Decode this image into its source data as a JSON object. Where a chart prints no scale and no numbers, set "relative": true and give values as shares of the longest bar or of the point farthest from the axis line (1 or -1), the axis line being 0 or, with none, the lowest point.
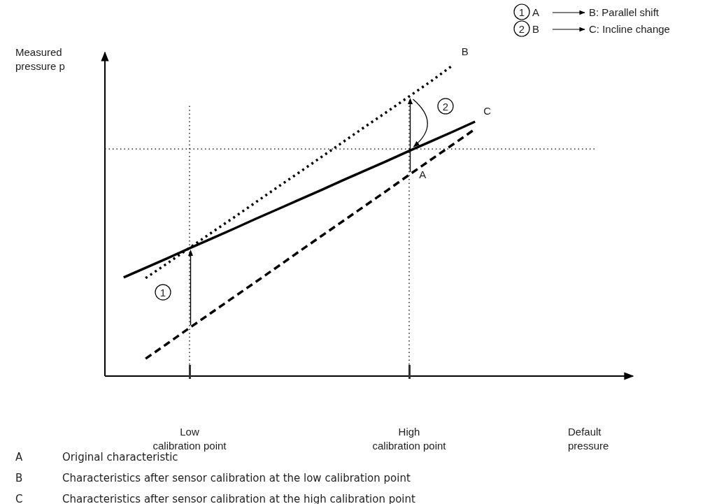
{
  "chart_data": {
    "type": "line",
    "relative": true,
    "ylabel": "Measured pressure p",
    "categories": [
      null,
      null,
      null,
      "Low calibration point",
      null,
      null,
      null,
      null,
      null,
      null,
      null,
      null,
      null,
      "High calibration point",
      null,
      null,
      null
    ],
    "tick_labels": "x",
    "series": [
      {
        "name": "A",
        "color": "#000000",
        "line_style": "dashed",
        "values": [
          null,
          0.056,
          0.105,
          0.155,
          0.204,
          0.253,
          0.302,
          0.351,
          0.401,
          0.45,
          0.499,
          0.548,
          0.597,
          0.647,
          0.696,
          0.745,
          0.794
        ]
      },
      {
        "name": "B",
        "color": "#000000",
        "line_style": "dotted",
        "values": [
          null,
          0.315,
          0.363,
          0.412,
          0.461,
          0.509,
          0.558,
          0.607,
          0.655,
          0.704,
          0.753,
          0.802,
          0.85,
          0.899,
          0.948,
          1,
          null
        ]
      },
      {
        "name": "C",
        "color": "#000000",
        "line_style": "solid",
        "values": [
          0.317,
          0.348,
          0.379,
          0.411,
          0.442,
          0.473,
          0.505,
          0.536,
          0.567,
          0.598,
          0.63,
          0.661,
          0.692,
          0.724,
          0.755,
          0.786,
          0.818
        ]
      }
    ],
    "ref_lines": [
      {
        "axis": "y",
        "value": 0.73,
        "line_style": "dotted",
        "color": "#000000"
      },
      {
        "axis": "x",
        "value": "Low calibration point",
        "line_style": "dotted",
        "color": "#000000"
      },
      {
        "axis": "x",
        "value": "High calibration point",
        "line_style": "dotted",
        "color": "#000000"
      }
    ],
    "annotations": [
      "1",
      "2",
      "Default pressure",
      "1",
      "A",
      "B: Parallel shift",
      "2",
      "B",
      "C: Incline change",
      "A",
      "Original characteristic",
      "B",
      "Characteristics after sensor calibration at the low calibration point",
      "C",
      "Characteristics after sensor calibration at the high calibration point"
    ]
  }
}
